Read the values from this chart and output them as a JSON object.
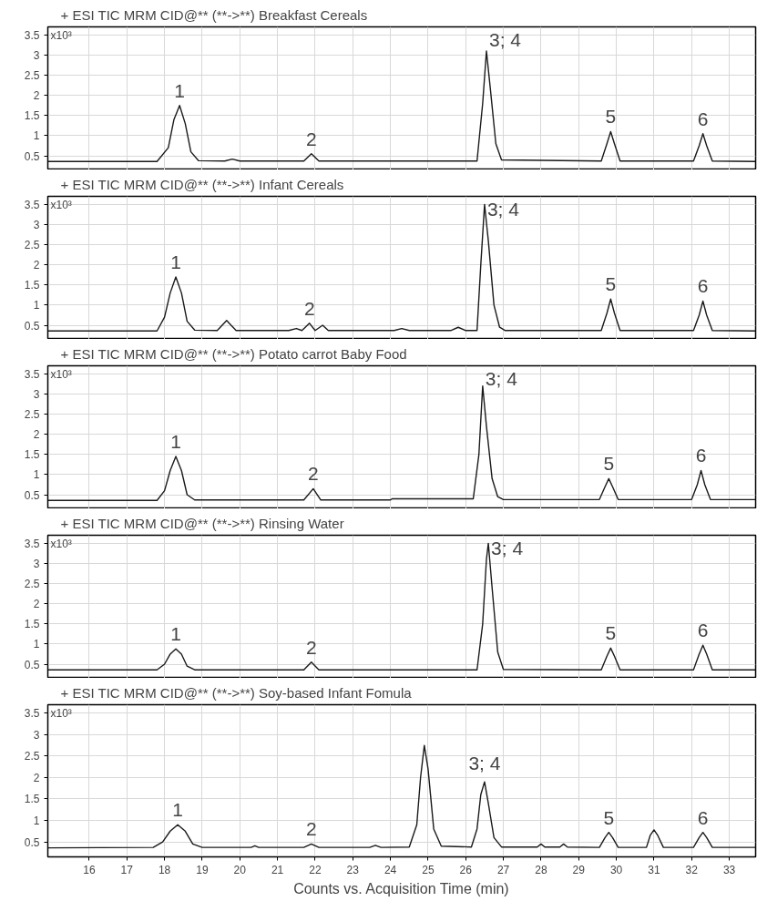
{
  "chart_data": [
    {
      "type": "line",
      "title": "+ ESI TIC MRM CID@** (**->**) Breakfast Cereals",
      "ylabel": "x10³",
      "xlim": [
        14.9,
        33.7
      ],
      "ylim": [
        0.15,
        3.7
      ],
      "yticks": [
        0.5,
        1,
        1.5,
        2,
        2.5,
        3,
        3.5
      ],
      "xticks": [
        16,
        17,
        18,
        19,
        20,
        21,
        22,
        23,
        24,
        25,
        26,
        27,
        28,
        29,
        30,
        31,
        32,
        33
      ],
      "tick_labels": "y",
      "grid": true,
      "series": [
        {
          "color": "#1a1a1a",
          "x": [
            14.9,
            17.8,
            18.1,
            18.25,
            18.4,
            18.55,
            18.7,
            18.9,
            19.6,
            19.8,
            20.0,
            21.7,
            21.9,
            22.1,
            26.3,
            26.45,
            26.55,
            26.65,
            26.8,
            26.95,
            29.6,
            29.75,
            29.85,
            29.95,
            30.1,
            32.05,
            32.2,
            32.3,
            32.4,
            32.55,
            33.7
          ],
          "values": [
            0.36,
            0.36,
            0.7,
            1.4,
            1.75,
            1.3,
            0.6,
            0.38,
            0.37,
            0.42,
            0.37,
            0.37,
            0.55,
            0.37,
            0.37,
            1.8,
            3.1,
            2.2,
            0.8,
            0.4,
            0.37,
            0.8,
            1.1,
            0.8,
            0.37,
            0.37,
            0.75,
            1.05,
            0.75,
            0.37,
            0.36
          ]
        }
      ],
      "annotations": [
        {
          "text": "1",
          "x": 18.4,
          "y": 1.75
        },
        {
          "text": "2",
          "x": 21.9,
          "y": 0.55
        },
        {
          "text": "3; 4",
          "x": 26.55,
          "y": 3.1
        },
        {
          "text": "5",
          "x": 29.85,
          "y": 1.1
        },
        {
          "text": "6",
          "x": 32.3,
          "y": 1.05
        }
      ]
    },
    {
      "type": "line",
      "title": "+ ESI TIC MRM CID@** (**->**) Infant Cereals",
      "ylabel": "x10³",
      "xlim": [
        14.9,
        33.7
      ],
      "ylim": [
        0.15,
        3.7
      ],
      "yticks": [
        0.5,
        1,
        1.5,
        2,
        2.5,
        3,
        3.5
      ],
      "xticks": [
        16,
        17,
        18,
        19,
        20,
        21,
        22,
        23,
        24,
        25,
        26,
        27,
        28,
        29,
        30,
        31,
        32,
        33
      ],
      "tick_labels": "y",
      "grid": true,
      "series": [
        {
          "color": "#1a1a1a",
          "x": [
            14.9,
            17.8,
            18.0,
            18.15,
            18.3,
            18.45,
            18.6,
            18.8,
            19.4,
            19.65,
            19.9,
            21.3,
            21.5,
            21.65,
            21.85,
            22.0,
            22.2,
            22.35,
            24.1,
            24.3,
            24.5,
            25.6,
            25.8,
            26.0,
            26.3,
            26.4,
            26.5,
            26.6,
            26.75,
            26.9,
            27.05,
            29.6,
            29.75,
            29.85,
            29.95,
            30.1,
            32.05,
            32.2,
            32.3,
            32.4,
            32.55,
            33.7
          ],
          "values": [
            0.36,
            0.36,
            0.7,
            1.3,
            1.7,
            1.3,
            0.6,
            0.38,
            0.37,
            0.62,
            0.37,
            0.37,
            0.42,
            0.37,
            0.55,
            0.37,
            0.5,
            0.37,
            0.37,
            0.42,
            0.37,
            0.37,
            0.45,
            0.37,
            0.37,
            2.0,
            3.5,
            2.6,
            1.0,
            0.45,
            0.37,
            0.37,
            0.8,
            1.15,
            0.8,
            0.37,
            0.37,
            0.75,
            1.1,
            0.75,
            0.37,
            0.36
          ]
        }
      ],
      "annotations": [
        {
          "text": "1",
          "x": 18.3,
          "y": 1.7
        },
        {
          "text": "2",
          "x": 21.85,
          "y": 0.55
        },
        {
          "text": "3; 4",
          "x": 26.5,
          "y": 3.5
        },
        {
          "text": "5",
          "x": 29.85,
          "y": 1.15
        },
        {
          "text": "6",
          "x": 32.3,
          "y": 1.1
        }
      ]
    },
    {
      "type": "line",
      "title": "+ ESI TIC MRM CID@** (**->**) Potato carrot Baby Food",
      "ylabel": "x10³",
      "xlim": [
        14.9,
        33.7
      ],
      "ylim": [
        0.15,
        3.7
      ],
      "yticks": [
        0.5,
        1,
        1.5,
        2,
        2.5,
        3,
        3.5
      ],
      "xticks": [
        16,
        17,
        18,
        19,
        20,
        21,
        22,
        23,
        24,
        25,
        26,
        27,
        28,
        29,
        30,
        31,
        32,
        33
      ],
      "tick_labels": "y",
      "grid": true,
      "series": [
        {
          "color": "#1a1a1a",
          "x": [
            14.9,
            17.8,
            18.0,
            18.15,
            18.3,
            18.45,
            18.6,
            18.8,
            21.7,
            21.95,
            22.15,
            24.0,
            24.05,
            26.2,
            26.35,
            26.45,
            26.55,
            26.7,
            26.85,
            27.0,
            29.55,
            29.7,
            29.8,
            29.9,
            30.05,
            32.0,
            32.15,
            32.25,
            32.35,
            32.5,
            33.7
          ],
          "values": [
            0.36,
            0.36,
            0.6,
            1.1,
            1.45,
            1.1,
            0.5,
            0.37,
            0.37,
            0.65,
            0.37,
            0.37,
            0.4,
            0.4,
            1.5,
            3.2,
            2.2,
            0.9,
            0.45,
            0.38,
            0.38,
            0.7,
            0.9,
            0.7,
            0.38,
            0.38,
            0.75,
            1.1,
            0.75,
            0.38,
            0.38
          ]
        }
      ],
      "annotations": [
        {
          "text": "1",
          "x": 18.3,
          "y": 1.45
        },
        {
          "text": "2",
          "x": 21.95,
          "y": 0.65
        },
        {
          "text": "3; 4",
          "x": 26.45,
          "y": 3.2
        },
        {
          "text": "5",
          "x": 29.8,
          "y": 0.9
        },
        {
          "text": "6",
          "x": 32.25,
          "y": 1.1
        }
      ]
    },
    {
      "type": "line",
      "title": "+ ESI TIC MRM CID@** (**->**) Rinsing Water",
      "ylabel": "x10³",
      "xlim": [
        14.9,
        33.7
      ],
      "ylim": [
        0.15,
        3.7
      ],
      "yticks": [
        0.5,
        1,
        1.5,
        2,
        2.5,
        3,
        3.5
      ],
      "xticks": [
        16,
        17,
        18,
        19,
        20,
        21,
        22,
        23,
        24,
        25,
        26,
        27,
        28,
        29,
        30,
        31,
        32,
        33
      ],
      "tick_labels": "y",
      "grid": true,
      "series": [
        {
          "color": "#1a1a1a",
          "x": [
            14.9,
            17.8,
            18.0,
            18.15,
            18.3,
            18.45,
            18.6,
            18.8,
            21.7,
            21.9,
            22.1,
            26.3,
            26.45,
            26.55,
            26.6,
            26.7,
            26.85,
            27.0,
            29.6,
            29.75,
            29.85,
            29.95,
            30.1,
            32.05,
            32.2,
            32.3,
            32.4,
            32.55,
            33.7
          ],
          "values": [
            0.36,
            0.36,
            0.5,
            0.75,
            0.88,
            0.75,
            0.45,
            0.36,
            0.36,
            0.55,
            0.36,
            0.36,
            1.5,
            3.1,
            3.5,
            2.4,
            0.8,
            0.37,
            0.36,
            0.7,
            0.9,
            0.7,
            0.36,
            0.36,
            0.75,
            0.97,
            0.75,
            0.36,
            0.36
          ]
        }
      ],
      "annotations": [
        {
          "text": "1",
          "x": 18.3,
          "y": 0.88
        },
        {
          "text": "2",
          "x": 21.9,
          "y": 0.55
        },
        {
          "text": "3; 4",
          "x": 26.6,
          "y": 3.5
        },
        {
          "text": "5",
          "x": 29.85,
          "y": 0.9
        },
        {
          "text": "6",
          "x": 32.3,
          "y": 0.97
        }
      ]
    },
    {
      "type": "line",
      "title": "+ ESI TIC MRM CID@** (**->**) Soy-based Infant Fomula",
      "ylabel": "x10³",
      "xlabel": "Counts vs. Acquisition Time (min)",
      "xlim": [
        14.9,
        33.7
      ],
      "ylim": [
        0.15,
        3.7
      ],
      "yticks": [
        0.5,
        1,
        1.5,
        2,
        2.5,
        3,
        3.5
      ],
      "xticks": [
        16,
        17,
        18,
        19,
        20,
        21,
        22,
        23,
        24,
        25,
        26,
        27,
        28,
        29,
        30,
        31,
        32,
        33
      ],
      "grid": true,
      "series": [
        {
          "color": "#1a1a1a",
          "x": [
            14.9,
            17.7,
            17.95,
            18.15,
            18.35,
            18.55,
            18.75,
            19.0,
            20.3,
            20.4,
            20.5,
            21.7,
            21.9,
            22.1,
            23.45,
            23.6,
            23.75,
            24.5,
            24.7,
            24.8,
            24.9,
            25.0,
            25.15,
            25.35,
            26.15,
            26.3,
            26.4,
            26.5,
            26.6,
            26.75,
            26.95,
            27.9,
            28.0,
            28.1,
            28.5,
            28.6,
            28.7,
            29.55,
            29.7,
            29.8,
            29.9,
            30.05,
            30.8,
            30.9,
            31.0,
            31.1,
            31.25,
            32.05,
            32.2,
            32.3,
            32.4,
            32.55,
            33.7
          ],
          "values": [
            0.36,
            0.37,
            0.5,
            0.75,
            0.9,
            0.75,
            0.45,
            0.37,
            0.37,
            0.41,
            0.37,
            0.37,
            0.45,
            0.37,
            0.37,
            0.42,
            0.37,
            0.38,
            0.9,
            2.0,
            2.75,
            2.2,
            0.8,
            0.4,
            0.38,
            0.8,
            1.6,
            1.9,
            1.4,
            0.6,
            0.38,
            0.38,
            0.45,
            0.38,
            0.38,
            0.45,
            0.38,
            0.37,
            0.6,
            0.72,
            0.6,
            0.37,
            0.37,
            0.65,
            0.78,
            0.65,
            0.37,
            0.37,
            0.6,
            0.72,
            0.6,
            0.37,
            0.37
          ]
        }
      ],
      "annotations": [
        {
          "text": "1",
          "x": 18.35,
          "y": 0.9
        },
        {
          "text": "2",
          "x": 21.9,
          "y": 0.45
        },
        {
          "text": "3; 4",
          "x": 26.5,
          "y": 1.9
        },
        {
          "text": "5",
          "x": 29.8,
          "y": 0.72
        },
        {
          "text": "6",
          "x": 32.3,
          "y": 0.72
        }
      ]
    }
  ]
}
